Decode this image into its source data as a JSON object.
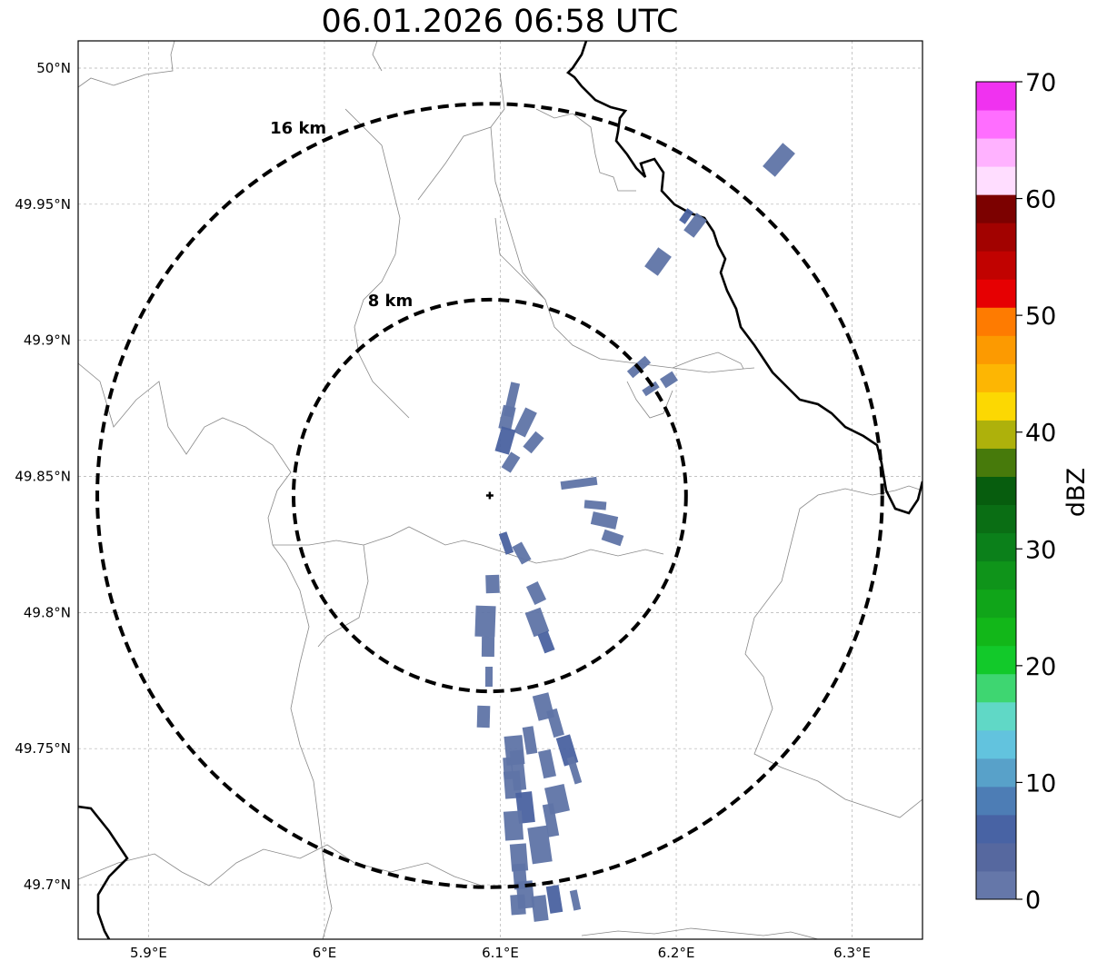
{
  "title": "06.01.2026 06:58 UTC",
  "map": {
    "lon_range": [
      5.86,
      6.34
    ],
    "lat_range": [
      49.68,
      50.01
    ],
    "x_ticks": [
      {
        "value": 5.9,
        "label": "5.9°E"
      },
      {
        "value": 6.0,
        "label": "6°E"
      },
      {
        "value": 6.1,
        "label": "6.1°E"
      },
      {
        "value": 6.2,
        "label": "6.2°E"
      },
      {
        "value": 6.3,
        "label": "6.3°E"
      }
    ],
    "y_ticks": [
      {
        "value": 49.7,
        "label": "49.7°N"
      },
      {
        "value": 49.75,
        "label": "49.75°N"
      },
      {
        "value": 49.8,
        "label": "49.8°N"
      },
      {
        "value": 49.85,
        "label": "49.85°N"
      },
      {
        "value": 49.9,
        "label": "49.9°N"
      },
      {
        "value": 49.95,
        "label": "49.95°N"
      },
      {
        "value": 50.0,
        "label": "50°N"
      }
    ],
    "gridlines": true,
    "radar_site": {
      "lon": 6.094,
      "lat": 49.843
    },
    "range_rings": [
      {
        "label": "8 km",
        "radius_km": 8
      },
      {
        "label": "16 km",
        "radius_km": 16
      }
    ],
    "echo_color": "#5f74a6",
    "echo_color_alt": "#4a62a0",
    "border_color": "#000000",
    "admin_color": "#888888"
  },
  "colorbar": {
    "label": "dBZ",
    "min": 0,
    "max": 70,
    "ticks": [
      0,
      10,
      20,
      30,
      40,
      50,
      60,
      70
    ],
    "colors": [
      "#6577a9",
      "#56689f",
      "#4863a4",
      "#4d7db5",
      "#58a1c9",
      "#62c3de",
      "#60d8c6",
      "#3ed671",
      "#12c92a",
      "#12b719",
      "#10a519",
      "#0f941a",
      "#0b801a",
      "#0a6e14",
      "#075d0e",
      "#477a0b",
      "#aeb10b",
      "#fcd802",
      "#fdb603",
      "#fc9a01",
      "#fe7b01",
      "#e60002",
      "#c10200",
      "#a20200",
      "#7c0100",
      "#ffddff",
      "#ffb2ff",
      "#ff6eff",
      "#f032f0"
    ]
  }
}
